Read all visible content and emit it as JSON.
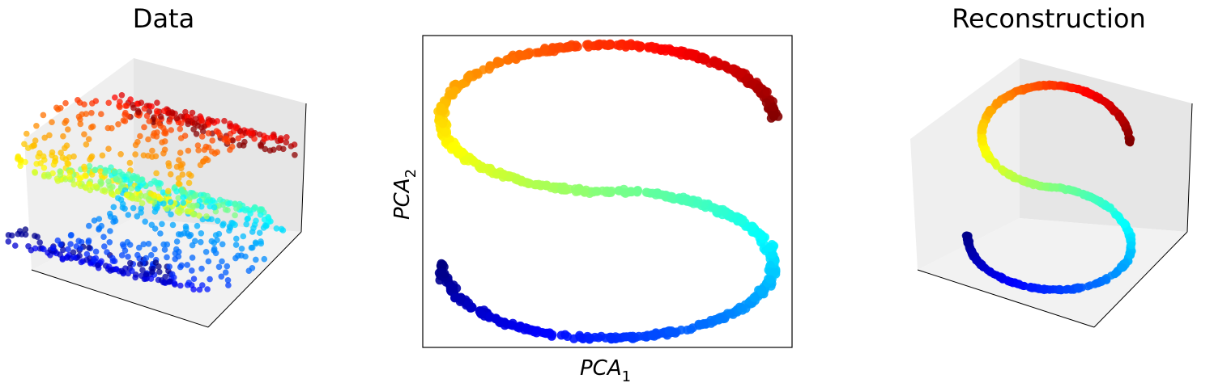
{
  "chart_data": [
    {
      "type": "scatter",
      "title": "Data",
      "projection": "3d",
      "grid": false,
      "ticks": false,
      "colormap": "jet",
      "point_counts_approx": 1000,
      "description_of_points": "Noisy S-curve manifold sampled as sheets; color encodes position along the curve"
    },
    {
      "type": "scatter",
      "title": "",
      "xlabel": "PCA",
      "xlabel_subscript": "1",
      "ylabel": "PCA",
      "ylabel_subscript": "2",
      "ticks": false,
      "grid": false,
      "colormap": "jet",
      "curve_shape": "S-curve",
      "t_range": [
        0,
        1
      ],
      "color_stops": [
        "#00008f",
        "#0000ff",
        "#0080ff",
        "#00ffff",
        "#80ff80",
        "#ffff00",
        "#ff8000",
        "#ff0000",
        "#800000"
      ]
    },
    {
      "type": "scatter",
      "title": "Reconstruction",
      "projection": "3d",
      "grid": false,
      "ticks": false,
      "colormap": "jet",
      "curve_shape": "S-curve"
    }
  ]
}
